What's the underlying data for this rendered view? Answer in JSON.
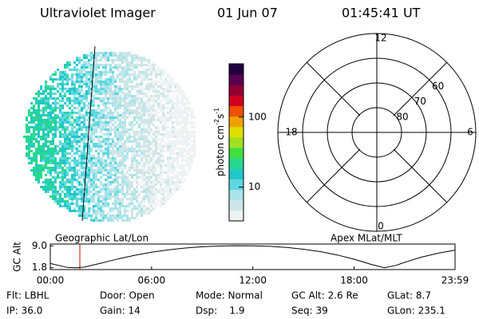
{
  "header": {
    "title": "Ultraviolet Imager",
    "date": "01 Jun 07",
    "time": "01:45:41 UT"
  },
  "colorbar": {
    "label": [
      "photon cm",
      "-2",
      "s",
      "-1"
    ],
    "scale": "log",
    "lim": [
      3.3,
      575
    ],
    "ticks": [
      10,
      100
    ],
    "colors": [
      "#eef2f2",
      "#cfe6e8",
      "#a8e4ea",
      "#5ed8e0",
      "#22c8c8",
      "#28d890",
      "#40e040",
      "#a0e020",
      "#e0e000",
      "#f0a000",
      "#f05000",
      "#d00020",
      "#900030",
      "#5a0050",
      "#200040"
    ]
  },
  "image": {
    "label": "Geographic Lat/Lon"
  },
  "polar": {
    "label": "Apex MLat/MLT",
    "mlt_ticks": [
      12,
      6,
      0,
      18
    ],
    "lat_ticks": [
      80,
      70,
      60
    ]
  },
  "chart_data": {
    "type": "line",
    "ylabel": "GC Alt",
    "color": "#000000",
    "x": [
      0,
      1,
      1.5,
      2,
      3,
      4,
      5,
      6,
      7,
      8,
      9,
      10,
      11,
      12,
      13,
      14,
      15,
      16,
      17,
      18,
      19,
      19.8,
      20.5,
      21,
      22,
      23,
      23.98
    ],
    "values": [
      3.2,
      1.9,
      1.8,
      2.0,
      3.3,
      4.7,
      5.9,
      6.9,
      7.7,
      8.3,
      8.7,
      8.95,
      9.05,
      9.0,
      8.85,
      8.5,
      7.9,
      7.1,
      6.0,
      4.6,
      2.9,
      1.8,
      2.6,
      3.6,
      5.3,
      6.6,
      7.6
    ],
    "xlim": [
      0,
      23.98
    ],
    "ylim": [
      1.2,
      9.6
    ],
    "xticks": [
      {
        "value": 0,
        "label": "00:00"
      },
      {
        "value": 6,
        "label": "06:00"
      },
      {
        "value": 12,
        "label": "12:00"
      },
      {
        "value": 18,
        "label": "18:00"
      },
      {
        "value": 23.98,
        "label": "23:59"
      }
    ],
    "yticks": [
      1.8,
      {
        "value": 9,
        "label": "9.0"
      }
    ],
    "marker": {
      "x": 1.75,
      "color": "#d00000"
    }
  },
  "footer": {
    "rows": [
      [
        "Flt: LBHL",
        "Door: Open",
        "Mode: Normal",
        "GC Alt: 2.6 Re",
        "GLat: 8.7"
      ],
      [
        "IP: 36.0",
        "Gain: 14",
        "Dsp:    1.9",
        "Seq: 39",
        "GLon: 235.1"
      ]
    ]
  }
}
